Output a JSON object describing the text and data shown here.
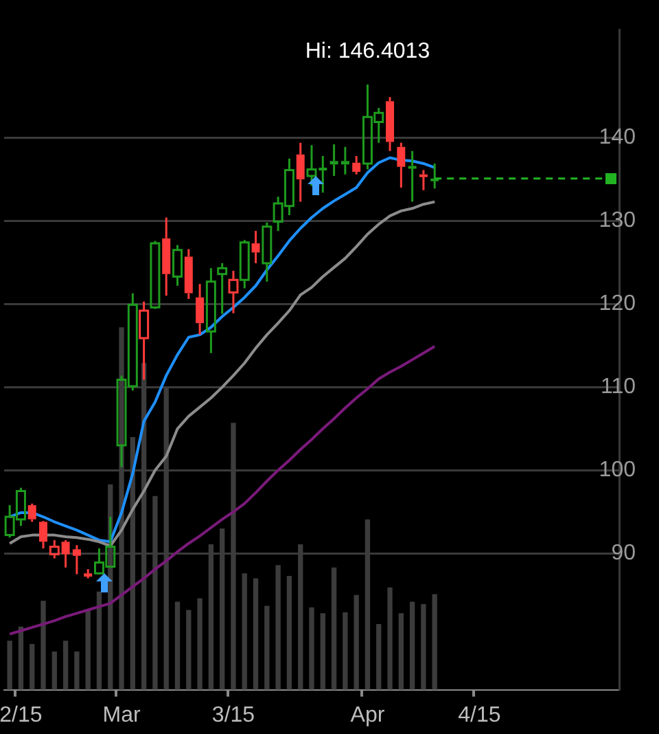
{
  "chart_data": {
    "type": "candlestick",
    "annotations": [
      {
        "text": "Hi: 146.4013",
        "y": 146.4013
      }
    ],
    "categories": [
      null,
      "2/15",
      null,
      null,
      null,
      null,
      null,
      null,
      null,
      null,
      "Mar",
      null,
      null,
      null,
      null,
      null,
      null,
      null,
      null,
      null,
      "3/15",
      null,
      null,
      null,
      null,
      null,
      null,
      null,
      null,
      null,
      null,
      null,
      "Apr",
      null,
      null,
      null,
      null,
      null,
      null,
      null,
      null,
      null,
      "4/15",
      null,
      null,
      null,
      null,
      null,
      null,
      null,
      null,
      null,
      null,
      null,
      null
    ],
    "ohlc": [
      [
        92.2,
        95.8,
        91.9,
        94.4
      ],
      [
        94.1,
        97.9,
        93.3,
        97.5
      ],
      [
        95.8,
        96.0,
        93.8,
        94.1
      ],
      [
        93.8,
        93.9,
        90.6,
        91.4
      ],
      [
        89.9,
        91.6,
        89.4,
        90.8
      ],
      [
        91.4,
        91.6,
        88.3,
        89.9
      ],
      [
        90.5,
        91.0,
        87.5,
        89.7
      ],
      [
        87.6,
        88.1,
        87.0,
        87.2
      ],
      [
        87.6,
        90.6,
        87.5,
        88.9
      ],
      [
        88.4,
        94.4,
        88.4,
        90.8
      ],
      [
        103.0,
        111.4,
        100.4,
        110.9
      ],
      [
        110.1,
        121.3,
        109.6,
        119.9
      ],
      [
        115.9,
        120.3,
        110.9,
        119.2
      ],
      [
        119.6,
        127.6,
        119.4,
        127.3
      ],
      [
        127.9,
        130.4,
        121.0,
        123.6
      ],
      [
        123.3,
        127.1,
        122.2,
        126.5
      ],
      [
        125.7,
        126.6,
        120.6,
        121.3
      ],
      [
        120.8,
        122.4,
        116.3,
        117.7
      ],
      [
        116.7,
        124.3,
        114.1,
        122.7
      ],
      [
        123.6,
        124.9,
        118.8,
        124.3
      ],
      [
        121.4,
        124.0,
        118.9,
        122.9
      ],
      [
        122.9,
        127.7,
        121.9,
        127.4
      ],
      [
        127.3,
        128.8,
        124.9,
        126.2
      ],
      [
        124.9,
        129.8,
        122.7,
        129.3
      ],
      [
        129.9,
        132.9,
        128.8,
        132.1
      ],
      [
        131.8,
        137.5,
        130.7,
        136.1
      ],
      [
        138.0,
        139.4,
        132.3,
        135.0
      ],
      [
        135.4,
        139.1,
        134.2,
        136.2
      ],
      [
        136.3,
        137.8,
        133.4,
        136.4
      ],
      [
        136.8,
        139.2,
        135.4,
        137.2
      ],
      [
        136.8,
        138.9,
        135.6,
        137.2
      ],
      [
        137.0,
        137.8,
        135.6,
        135.9
      ],
      [
        136.9,
        146.4013,
        136.2,
        142.5
      ],
      [
        141.9,
        143.6,
        139.4,
        143.0
      ],
      [
        144.4,
        144.9,
        138.4,
        139.5
      ],
      [
        138.9,
        139.4,
        134.0,
        136.5
      ],
      [
        136.5,
        138.4,
        132.3,
        136.6
      ],
      [
        135.6,
        136.1,
        133.7,
        135.4
      ],
      [
        135.0,
        136.9,
        133.9,
        135.1
      ],
      null,
      null,
      null,
      null,
      null,
      null,
      null,
      null,
      null,
      null,
      null,
      null,
      null,
      null,
      null,
      null
    ],
    "colors": [
      "#1e9b1e",
      "#1e9b1e",
      "#ff3b3b",
      "#ff3b3b",
      "#ff3b3b",
      "#ff3b3b",
      "#ff3b3b",
      "#ff3b3b",
      "#1e9b1e",
      "#1e9b1e",
      "#1e9b1e",
      "#1e9b1e",
      "#ff3b3b",
      "#1e9b1e",
      "#ff3b3b",
      "#1e9b1e",
      "#ff3b3b",
      "#ff3b3b",
      "#1e9b1e",
      "#1e9b1e",
      "#ff3b3b",
      "#1e9b1e",
      "#ff3b3b",
      "#1e9b1e",
      "#1e9b1e",
      "#1e9b1e",
      "#ff3b3b",
      "#1e9b1e",
      "#1e9b1e",
      "#1e9b1e",
      "#1e9b1e",
      "#ff3b3b",
      "#1e9b1e",
      "#1e9b1e",
      "#ff3b3b",
      "#ff3b3b",
      "#1e9b1e",
      "#ff3b3b",
      "#1e9b1e",
      null,
      null,
      null,
      null,
      null,
      null,
      null,
      null,
      null,
      null,
      null,
      null,
      null,
      null,
      null,
      null
    ],
    "series": [
      {
        "type": "bar",
        "color": "#3c3c3c",
        "values": [
          79.5,
          81.2,
          79.1,
          84.3,
          78.2,
          79.5,
          78.2,
          83.2,
          85.4,
          98.3,
          117.2,
          104.0,
          112.9,
          96.9,
          110.0,
          84.2,
          83.2,
          84.6,
          91.1,
          93.0,
          105.7,
          87.6,
          87.0,
          83.7,
          88.6,
          87.3,
          91.1,
          83.5,
          82.8,
          88.3,
          82.9,
          85.0,
          94.1,
          81.5,
          85.9,
          82.8,
          84.2,
          83.9,
          85.1,
          null,
          null,
          null,
          null,
          null,
          null,
          null,
          null,
          null,
          null,
          null,
          null,
          null,
          null,
          null,
          null
        ]
      },
      {
        "type": "line",
        "color": "#7a1a7a",
        "values": [
          80.3,
          80.7,
          81.1,
          81.5,
          81.9,
          82.4,
          82.8,
          83.2,
          83.6,
          84.0,
          85.0,
          86.0,
          87.0,
          88.1,
          89.1,
          90.2,
          91.2,
          92.1,
          93.1,
          94.1,
          95.0,
          96.0,
          97.3,
          98.7,
          100.0,
          101.2,
          102.5,
          103.7,
          105.0,
          106.2,
          107.5,
          108.7,
          109.8,
          111.0,
          111.8,
          112.5,
          113.3,
          114.1,
          114.9,
          null,
          null,
          null,
          null,
          null,
          null,
          null,
          null,
          null,
          null,
          null,
          null,
          null,
          null,
          null,
          null
        ]
      },
      {
        "type": "line",
        "color": "#8c8c8c",
        "values": [
          91.2,
          92.0,
          92.2,
          92.2,
          92.2,
          92.0,
          91.9,
          91.7,
          91.4,
          90.9,
          92.8,
          95.3,
          97.5,
          100.0,
          101.7,
          105.0,
          106.5,
          107.6,
          108.7,
          110.0,
          111.4,
          112.9,
          114.7,
          116.3,
          117.7,
          119.2,
          121.1,
          122.0,
          123.3,
          124.4,
          125.5,
          126.9,
          128.4,
          129.6,
          130.6,
          131.2,
          131.5,
          132.0,
          132.3,
          null,
          null,
          null,
          null,
          null,
          null,
          null,
          null,
          null,
          null,
          null,
          null,
          null,
          null,
          null,
          null
        ]
      },
      {
        "type": "line",
        "color": "#1e90ff",
        "values": [
          94.4,
          94.9,
          94.9,
          94.4,
          93.8,
          93.3,
          92.8,
          92.2,
          91.6,
          91.4,
          94.9,
          99.6,
          105.9,
          108.2,
          111.4,
          113.9,
          116.0,
          116.3,
          117.2,
          118.5,
          119.6,
          120.8,
          122.2,
          124.1,
          125.8,
          127.6,
          129.1,
          130.4,
          131.5,
          132.4,
          133.2,
          134.0,
          135.8,
          137.0,
          137.6,
          137.3,
          137.2,
          136.9,
          136.4,
          null,
          null,
          null,
          null,
          null,
          null,
          null,
          null,
          null,
          null,
          null,
          null,
          null,
          null,
          null,
          null
        ]
      }
    ],
    "ref_lines": [
      {
        "axis": "y",
        "value": 135.1,
        "color": "#22b322",
        "line_style": "dashed"
      }
    ],
    "ylim": [
      73.6,
      153
    ],
    "yticks": [
      90,
      100,
      110,
      120,
      130,
      140
    ],
    "grid": "y"
  }
}
